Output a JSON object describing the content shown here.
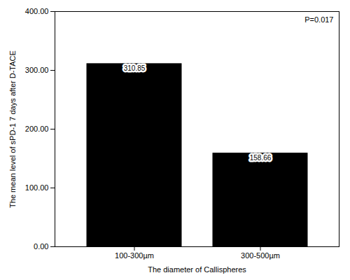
{
  "chart_data": {
    "type": "bar",
    "categories": [
      "100-300µm",
      "300-500µm"
    ],
    "values": [
      310.85,
      158.66
    ],
    "color": "#000000",
    "xlabel": "The diameter of Callispheres",
    "ylabel": "The mean level of sPD-1 7 days after D-TACE",
    "ylim": [
      0,
      400
    ],
    "yticks": [
      {
        "value": 0,
        "label": "0.00"
      },
      {
        "value": 100,
        "label": "100.00"
      },
      {
        "value": 200,
        "label": "200.00"
      },
      {
        "value": 300,
        "label": "300.00"
      },
      {
        "value": 400,
        "label": "400.00"
      }
    ],
    "annotation": "P=0.017",
    "data_labels": true,
    "grid": false
  }
}
